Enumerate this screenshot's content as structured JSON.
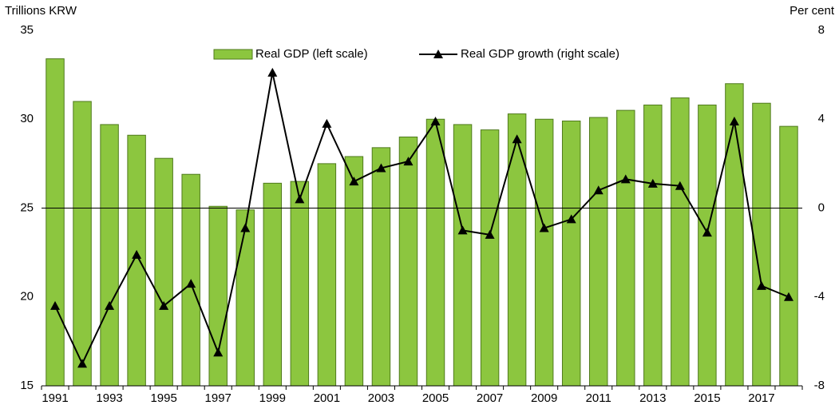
{
  "chart_data": {
    "type": "bar",
    "ylabel": "Trillions KRW",
    "y2label": "Per cent",
    "categories": [
      "1991",
      null,
      "1993",
      null,
      "1995",
      null,
      "1997",
      null,
      "1999",
      null,
      "2001",
      null,
      "2003",
      null,
      "2005",
      null,
      "2007",
      null,
      "2009",
      null,
      "2011",
      null,
      "2013",
      null,
      "2015",
      null,
      "2017",
      null
    ],
    "series": [
      {
        "name": "Real GDP (left scale)",
        "type": "bar",
        "color": "#8cc63f",
        "edge": "#4f7a1c",
        "values": [
          33.4,
          31.0,
          29.7,
          29.1,
          27.8,
          26.9,
          25.1,
          24.9,
          26.4,
          26.5,
          27.5,
          27.9,
          28.4,
          29.0,
          30.0,
          29.7,
          29.4,
          30.3,
          30.0,
          29.9,
          30.1,
          30.5,
          30.8,
          31.2,
          30.8,
          32.0,
          30.9,
          29.6
        ]
      },
      {
        "name": "Real GDP growth (right scale)",
        "type": "line",
        "axis": "y2",
        "color": "#000000",
        "values": [
          -4.4,
          -7.0,
          -4.4,
          -2.1,
          -4.4,
          -3.4,
          -6.5,
          -0.9,
          6.1,
          0.4,
          3.8,
          1.2,
          1.8,
          2.1,
          3.9,
          -1.0,
          -1.2,
          3.1,
          -0.9,
          -0.5,
          0.8,
          1.3,
          1.1,
          1.0,
          -1.1,
          3.9,
          -3.5,
          -4.0
        ]
      }
    ],
    "ylim": [
      15,
      35
    ],
    "yticks": [
      15,
      20,
      25,
      30,
      35
    ],
    "y2lim": [
      -8,
      8
    ],
    "y2ticks": [
      -8,
      -4,
      0,
      4,
      8
    ],
    "legend": "top"
  }
}
